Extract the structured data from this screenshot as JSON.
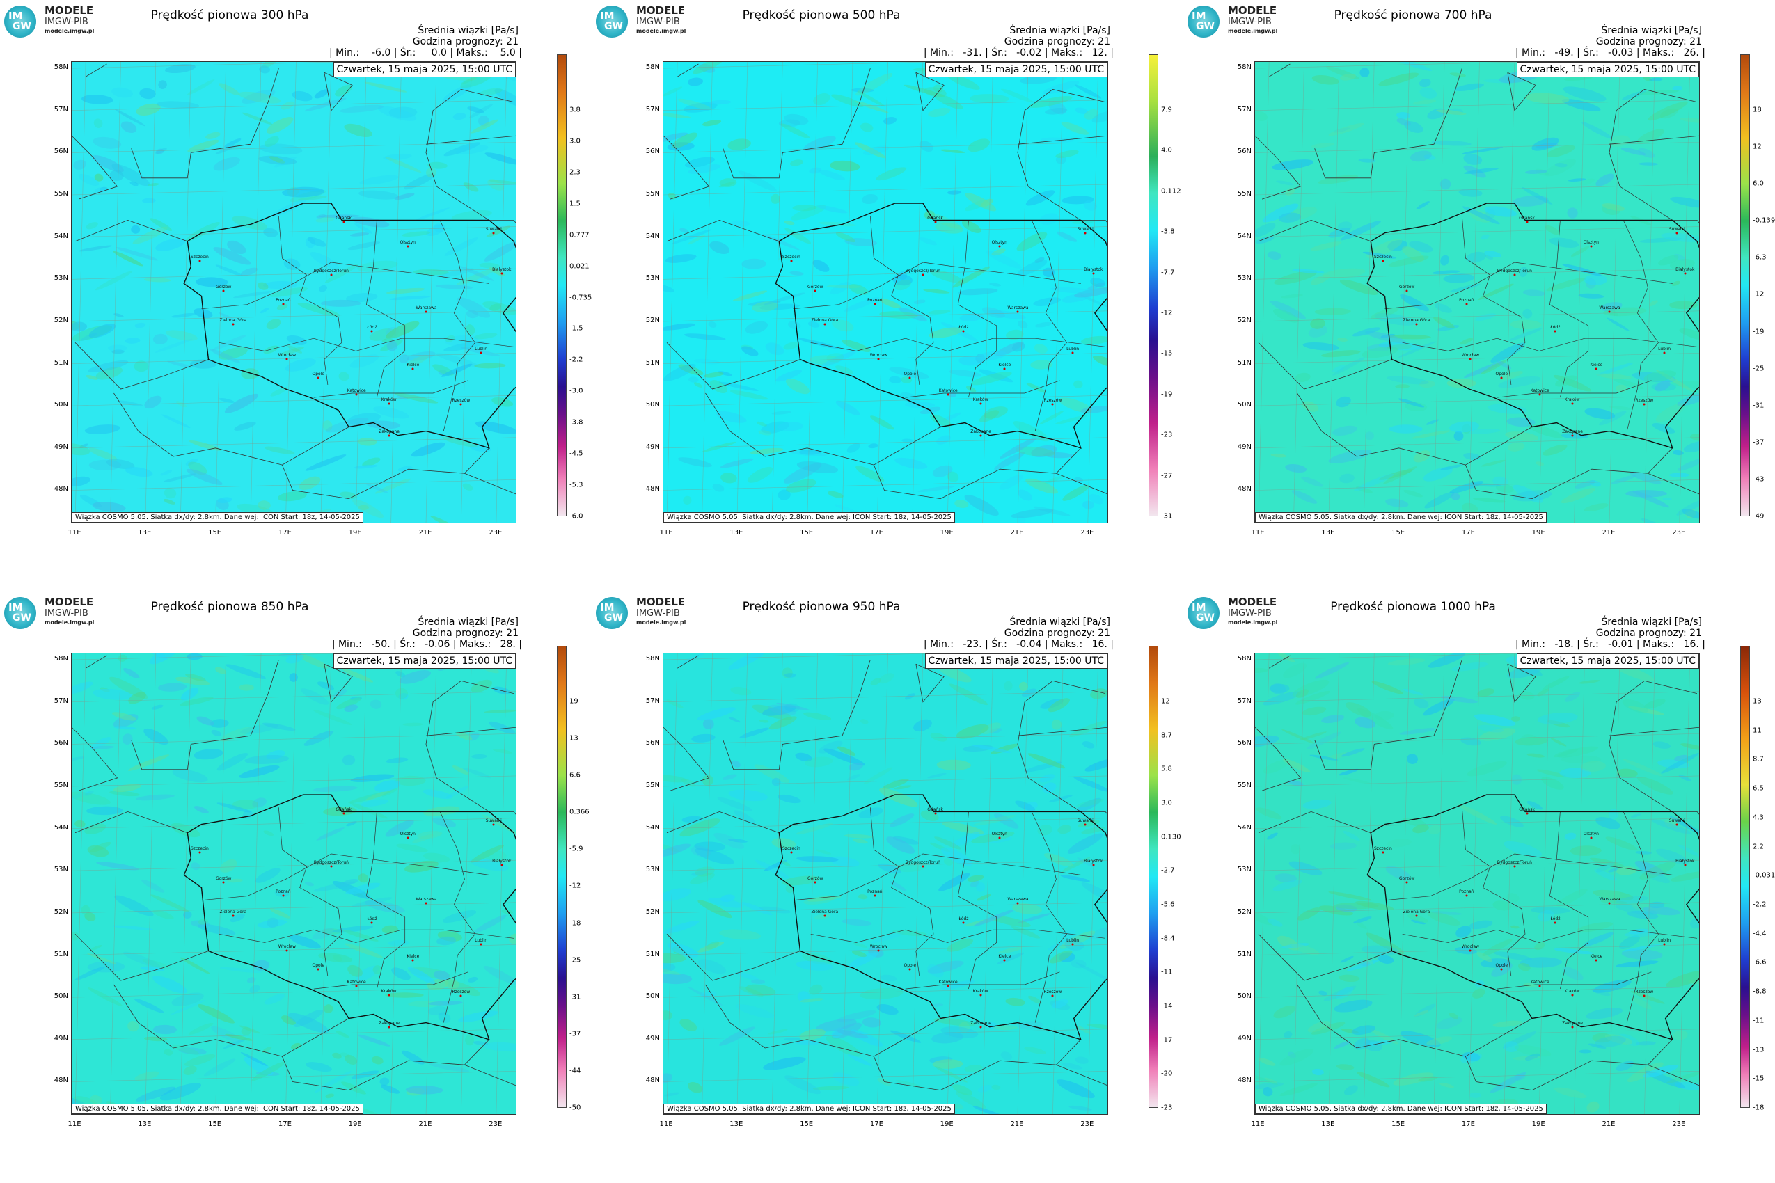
{
  "logo": {
    "line1": "MODELE",
    "line2": "IMGW-PIB",
    "line3": "modele.imgw.pl",
    "glyph_top": "IM",
    "glyph_bottom": "GW"
  },
  "common": {
    "info_line1": "Średnia wiązki [Pa/s]",
    "info_line2": "Godzina prognozy: 21",
    "date_label": "Czwartek, 15 maja 2025, 15:00 UTC",
    "credit": "Wiązka COSMO 5.05. Siatka dx/dy: 2.8km. Dane wej: ICON Start: 18z, 14-05-2025",
    "lat_labels": [
      "58N",
      "57N",
      "56N",
      "55N",
      "54N",
      "53N",
      "52N",
      "51N",
      "50N",
      "49N",
      "48N"
    ],
    "lon_labels": [
      "11E",
      "13E",
      "15E",
      "17E",
      "19E",
      "21E",
      "23E"
    ]
  },
  "cities": [
    {
      "name": "Gdańsk",
      "lon": 18.65,
      "lat": 54.35
    },
    {
      "name": "Olsztyn",
      "lon": 20.48,
      "lat": 53.78
    },
    {
      "name": "Suwałki",
      "lon": 22.93,
      "lat": 54.1
    },
    {
      "name": "Białystok",
      "lon": 23.16,
      "lat": 53.13
    },
    {
      "name": "Szczecin",
      "lon": 14.55,
      "lat": 53.43
    },
    {
      "name": "Bydgoszcz/Toruń",
      "lon": 18.3,
      "lat": 53.1
    },
    {
      "name": "Gorzów",
      "lon": 15.23,
      "lat": 52.73
    },
    {
      "name": "Poznań",
      "lon": 16.93,
      "lat": 52.41
    },
    {
      "name": "Warszawa",
      "lon": 21.01,
      "lat": 52.23
    },
    {
      "name": "Zielona Góra",
      "lon": 15.5,
      "lat": 51.94
    },
    {
      "name": "Łódź",
      "lon": 19.46,
      "lat": 51.76
    },
    {
      "name": "Lublin",
      "lon": 22.57,
      "lat": 51.25
    },
    {
      "name": "Wrocław",
      "lon": 17.04,
      "lat": 51.11
    },
    {
      "name": "Kielce",
      "lon": 20.63,
      "lat": 50.87
    },
    {
      "name": "Opole",
      "lon": 17.93,
      "lat": 50.67
    },
    {
      "name": "Katowice",
      "lon": 19.02,
      "lat": 50.26
    },
    {
      "name": "Kraków",
      "lon": 19.94,
      "lat": 50.06
    },
    {
      "name": "Rzeszów",
      "lon": 22.0,
      "lat": 50.04
    },
    {
      "name": "Zakopane",
      "lon": 19.95,
      "lat": 49.3
    }
  ],
  "panels": [
    {
      "title": "Prędkość pionowa 300 hPa",
      "stats": "| Min.:    -6.0 | Śr.:     0.0 | Maks.:    5.0 |",
      "colorbar": [
        "3.8",
        "3.0",
        "2.3",
        "1.5",
        "0.777",
        "0.021",
        "-0.735",
        "-1.5",
        "-2.2",
        "-3.0",
        "-3.8",
        "-4.5",
        "-5.3",
        "-6.0"
      ],
      "scheme": "orange",
      "dominant": "#2ee8f0"
    },
    {
      "title": "Prędkość pionowa 500 hPa",
      "stats": "| Min.:   -31. | Śr.:   -0.02 | Maks.:   12. |",
      "colorbar": [
        "7.9",
        "4.0",
        "0.112",
        "-3.8",
        "-7.7",
        "-12",
        "-15",
        "-19",
        "-23",
        "-27",
        "-31"
      ],
      "scheme": "yellow",
      "dominant": "#1eecf4"
    },
    {
      "title": "Prędkość pionowa 700 hPa",
      "stats": "| Min.:   -49. | Śr.:   -0.03 | Maks.:   26. |",
      "colorbar": [
        "18",
        "12",
        "6.0",
        "-0.139",
        "-6.3",
        "-12",
        "-19",
        "-25",
        "-31",
        "-37",
        "-43",
        "-49"
      ],
      "scheme": "orange",
      "dominant": "#36e6c8"
    },
    {
      "title": "Prędkość pionowa 850 hPa",
      "stats": "| Min.:   -50. | Śr.:   -0.06 | Maks.:   28. |",
      "colorbar": [
        "19",
        "13",
        "6.6",
        "0.366",
        "-5.9",
        "-12",
        "-18",
        "-25",
        "-31",
        "-37",
        "-44",
        "-50"
      ],
      "scheme": "orange",
      "dominant": "#2ee6d6"
    },
    {
      "title": "Prędkość pionowa 950 hPa",
      "stats": "| Min.:   -23. | Śr.:   -0.04 | Maks.:   16. |",
      "colorbar": [
        "12",
        "8.7",
        "5.8",
        "3.0",
        "0.130",
        "-2.7",
        "-5.6",
        "-8.4",
        "-11",
        "-14",
        "-17",
        "-20",
        "-23"
      ],
      "scheme": "orange",
      "dominant": "#28e4de"
    },
    {
      "title": "Prędkość pionowa 1000 hPa",
      "stats": "| Min.:   -18. | Śr.:   -0.01 | Maks.:   16. |",
      "colorbar": [
        "13",
        "11",
        "8.7",
        "6.5",
        "4.3",
        "2.2",
        "-0.031",
        "-2.2",
        "-4.4",
        "-6.6",
        "-8.8",
        "-11",
        "-13",
        "-15",
        "-18"
      ],
      "scheme": "red",
      "dominant": "#34e2c4"
    }
  ]
}
